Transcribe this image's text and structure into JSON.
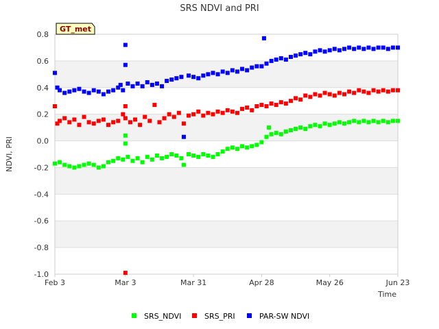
{
  "chart_data": {
    "type": "scatter",
    "title": "SRS NDVI and PRI",
    "xlabel": "Time",
    "ylabel": "NDVI, PRI",
    "badge": "GT_met",
    "ylim": [
      -1.0,
      0.8
    ],
    "yticks": [
      "0.8",
      "0.6",
      "0.4",
      "0.2",
      "0.0",
      "-0.2",
      "-0.4",
      "-0.6",
      "-0.8",
      "-1.0"
    ],
    "ytick_values": [
      0.8,
      0.6,
      0.4,
      0.2,
      0.0,
      -0.2,
      -0.4,
      -0.6,
      -0.8,
      -1.0
    ],
    "xlim": [
      "2024-02-03",
      "2024-06-23"
    ],
    "xticks": [
      "Feb 3",
      "Mar 3",
      "Mar 31",
      "Apr 28",
      "May 26",
      "Jun 23"
    ],
    "xtick_dates": [
      "2024-02-03",
      "2024-03-03",
      "2024-03-31",
      "2024-04-28",
      "2024-05-26",
      "2024-06-23"
    ],
    "grid": true,
    "legend_position": "bottom",
    "series": [
      {
        "name": "SRS_NDVI",
        "color": "#00ff00",
        "points": [
          [
            "2024-02-03",
            -0.17
          ],
          [
            "2024-02-05",
            -0.16
          ],
          [
            "2024-02-07",
            -0.18
          ],
          [
            "2024-02-09",
            -0.19
          ],
          [
            "2024-02-11",
            -0.2
          ],
          [
            "2024-02-13",
            -0.19
          ],
          [
            "2024-02-15",
            -0.18
          ],
          [
            "2024-02-17",
            -0.17
          ],
          [
            "2024-02-19",
            -0.18
          ],
          [
            "2024-02-21",
            -0.2
          ],
          [
            "2024-02-23",
            -0.19
          ],
          [
            "2024-02-25",
            -0.16
          ],
          [
            "2024-02-27",
            -0.15
          ],
          [
            "2024-02-29",
            -0.13
          ],
          [
            "2024-03-02",
            -0.14
          ],
          [
            "2024-03-03",
            -0.02
          ],
          [
            "2024-03-03",
            0.04
          ],
          [
            "2024-03-04",
            -0.12
          ],
          [
            "2024-03-06",
            -0.15
          ],
          [
            "2024-03-08",
            -0.13
          ],
          [
            "2024-03-10",
            -0.16
          ],
          [
            "2024-03-12",
            -0.12
          ],
          [
            "2024-03-14",
            -0.14
          ],
          [
            "2024-03-16",
            -0.11
          ],
          [
            "2024-03-18",
            -0.13
          ],
          [
            "2024-03-20",
            -0.12
          ],
          [
            "2024-03-22",
            -0.1
          ],
          [
            "2024-03-24",
            -0.11
          ],
          [
            "2024-03-26",
            -0.13
          ],
          [
            "2024-03-27",
            -0.18
          ],
          [
            "2024-03-29",
            -0.1
          ],
          [
            "2024-03-31",
            -0.11
          ],
          [
            "2024-04-02",
            -0.12
          ],
          [
            "2024-04-04",
            -0.1
          ],
          [
            "2024-04-06",
            -0.11
          ],
          [
            "2024-04-08",
            -0.12
          ],
          [
            "2024-04-10",
            -0.1
          ],
          [
            "2024-04-12",
            -0.08
          ],
          [
            "2024-04-14",
            -0.06
          ],
          [
            "2024-04-16",
            -0.05
          ],
          [
            "2024-04-18",
            -0.06
          ],
          [
            "2024-04-20",
            -0.04
          ],
          [
            "2024-04-22",
            -0.05
          ],
          [
            "2024-04-24",
            -0.04
          ],
          [
            "2024-04-26",
            -0.03
          ],
          [
            "2024-04-28",
            -0.01
          ],
          [
            "2024-04-30",
            0.03
          ],
          [
            "2024-05-01",
            0.1
          ],
          [
            "2024-05-02",
            0.05
          ],
          [
            "2024-05-04",
            0.06
          ],
          [
            "2024-05-06",
            0.05
          ],
          [
            "2024-05-08",
            0.07
          ],
          [
            "2024-05-10",
            0.08
          ],
          [
            "2024-05-12",
            0.09
          ],
          [
            "2024-05-14",
            0.1
          ],
          [
            "2024-05-16",
            0.09
          ],
          [
            "2024-05-18",
            0.11
          ],
          [
            "2024-05-20",
            0.12
          ],
          [
            "2024-05-22",
            0.11
          ],
          [
            "2024-05-24",
            0.13
          ],
          [
            "2024-05-26",
            0.12
          ],
          [
            "2024-05-28",
            0.13
          ],
          [
            "2024-05-30",
            0.14
          ],
          [
            "2024-06-01",
            0.13
          ],
          [
            "2024-06-03",
            0.14
          ],
          [
            "2024-06-05",
            0.15
          ],
          [
            "2024-06-07",
            0.14
          ],
          [
            "2024-06-09",
            0.15
          ],
          [
            "2024-06-11",
            0.14
          ],
          [
            "2024-06-13",
            0.15
          ],
          [
            "2024-06-15",
            0.14
          ],
          [
            "2024-06-17",
            0.15
          ],
          [
            "2024-06-19",
            0.14
          ],
          [
            "2024-06-21",
            0.15
          ],
          [
            "2024-06-23",
            0.15
          ]
        ]
      },
      {
        "name": "SRS_PRI",
        "color": "#ff0000",
        "points": [
          [
            "2024-02-03",
            0.26
          ],
          [
            "2024-02-04",
            0.13
          ],
          [
            "2024-02-05",
            0.15
          ],
          [
            "2024-02-07",
            0.17
          ],
          [
            "2024-02-09",
            0.14
          ],
          [
            "2024-02-11",
            0.16
          ],
          [
            "2024-02-13",
            0.12
          ],
          [
            "2024-02-15",
            0.18
          ],
          [
            "2024-02-17",
            0.14
          ],
          [
            "2024-02-19",
            0.13
          ],
          [
            "2024-02-21",
            0.15
          ],
          [
            "2024-02-23",
            0.16
          ],
          [
            "2024-02-25",
            0.12
          ],
          [
            "2024-02-27",
            0.14
          ],
          [
            "2024-02-29",
            0.15
          ],
          [
            "2024-03-02",
            0.2
          ],
          [
            "2024-03-03",
            0.17
          ],
          [
            "2024-03-03",
            0.26
          ],
          [
            "2024-03-03",
            -0.99
          ],
          [
            "2024-03-05",
            0.14
          ],
          [
            "2024-03-07",
            0.16
          ],
          [
            "2024-03-09",
            0.12
          ],
          [
            "2024-03-11",
            0.18
          ],
          [
            "2024-03-13",
            0.15
          ],
          [
            "2024-03-15",
            0.27
          ],
          [
            "2024-03-17",
            0.14
          ],
          [
            "2024-03-19",
            0.17
          ],
          [
            "2024-03-21",
            0.2
          ],
          [
            "2024-03-23",
            0.18
          ],
          [
            "2024-03-25",
            0.21
          ],
          [
            "2024-03-27",
            0.13
          ],
          [
            "2024-03-29",
            0.19
          ],
          [
            "2024-03-31",
            0.2
          ],
          [
            "2024-04-02",
            0.22
          ],
          [
            "2024-04-04",
            0.19
          ],
          [
            "2024-04-06",
            0.21
          ],
          [
            "2024-04-08",
            0.2
          ],
          [
            "2024-04-10",
            0.22
          ],
          [
            "2024-04-12",
            0.21
          ],
          [
            "2024-04-14",
            0.23
          ],
          [
            "2024-04-16",
            0.22
          ],
          [
            "2024-04-18",
            0.21
          ],
          [
            "2024-04-20",
            0.24
          ],
          [
            "2024-04-22",
            0.25
          ],
          [
            "2024-04-24",
            0.23
          ],
          [
            "2024-04-26",
            0.26
          ],
          [
            "2024-04-28",
            0.27
          ],
          [
            "2024-04-30",
            0.26
          ],
          [
            "2024-05-02",
            0.28
          ],
          [
            "2024-05-04",
            0.27
          ],
          [
            "2024-05-06",
            0.29
          ],
          [
            "2024-05-08",
            0.28
          ],
          [
            "2024-05-10",
            0.3
          ],
          [
            "2024-05-12",
            0.32
          ],
          [
            "2024-05-14",
            0.31
          ],
          [
            "2024-05-16",
            0.34
          ],
          [
            "2024-05-18",
            0.33
          ],
          [
            "2024-05-20",
            0.35
          ],
          [
            "2024-05-22",
            0.34
          ],
          [
            "2024-05-24",
            0.36
          ],
          [
            "2024-05-26",
            0.35
          ],
          [
            "2024-05-28",
            0.34
          ],
          [
            "2024-05-30",
            0.36
          ],
          [
            "2024-06-01",
            0.35
          ],
          [
            "2024-06-03",
            0.37
          ],
          [
            "2024-06-05",
            0.36
          ],
          [
            "2024-06-07",
            0.38
          ],
          [
            "2024-06-09",
            0.37
          ],
          [
            "2024-06-11",
            0.36
          ],
          [
            "2024-06-13",
            0.38
          ],
          [
            "2024-06-15",
            0.37
          ],
          [
            "2024-06-17",
            0.38
          ],
          [
            "2024-06-19",
            0.37
          ],
          [
            "2024-06-21",
            0.38
          ],
          [
            "2024-06-23",
            0.38
          ]
        ]
      },
      {
        "name": "PAR-SW NDVI",
        "color": "#0000ff",
        "points": [
          [
            "2024-02-03",
            0.51
          ],
          [
            "2024-02-04",
            0.4
          ],
          [
            "2024-02-05",
            0.38
          ],
          [
            "2024-02-07",
            0.36
          ],
          [
            "2024-02-09",
            0.37
          ],
          [
            "2024-02-11",
            0.38
          ],
          [
            "2024-02-13",
            0.39
          ],
          [
            "2024-02-15",
            0.37
          ],
          [
            "2024-02-17",
            0.36
          ],
          [
            "2024-02-19",
            0.38
          ],
          [
            "2024-02-21",
            0.37
          ],
          [
            "2024-02-23",
            0.35
          ],
          [
            "2024-02-25",
            0.37
          ],
          [
            "2024-02-27",
            0.38
          ],
          [
            "2024-02-29",
            0.4
          ],
          [
            "2024-03-01",
            0.42
          ],
          [
            "2024-03-02",
            0.38
          ],
          [
            "2024-03-03",
            0.72
          ],
          [
            "2024-03-03",
            0.57
          ],
          [
            "2024-03-04",
            0.43
          ],
          [
            "2024-03-06",
            0.41
          ],
          [
            "2024-03-08",
            0.43
          ],
          [
            "2024-03-10",
            0.41
          ],
          [
            "2024-03-12",
            0.44
          ],
          [
            "2024-03-14",
            0.42
          ],
          [
            "2024-03-16",
            0.43
          ],
          [
            "2024-03-18",
            0.41
          ],
          [
            "2024-03-20",
            0.45
          ],
          [
            "2024-03-22",
            0.46
          ],
          [
            "2024-03-24",
            0.47
          ],
          [
            "2024-03-26",
            0.48
          ],
          [
            "2024-03-27",
            0.03
          ],
          [
            "2024-03-29",
            0.49
          ],
          [
            "2024-03-31",
            0.48
          ],
          [
            "2024-04-02",
            0.47
          ],
          [
            "2024-04-04",
            0.49
          ],
          [
            "2024-04-06",
            0.5
          ],
          [
            "2024-04-08",
            0.51
          ],
          [
            "2024-04-10",
            0.5
          ],
          [
            "2024-04-12",
            0.52
          ],
          [
            "2024-04-14",
            0.51
          ],
          [
            "2024-04-16",
            0.53
          ],
          [
            "2024-04-18",
            0.52
          ],
          [
            "2024-04-20",
            0.54
          ],
          [
            "2024-04-22",
            0.53
          ],
          [
            "2024-04-24",
            0.55
          ],
          [
            "2024-04-26",
            0.56
          ],
          [
            "2024-04-28",
            0.56
          ],
          [
            "2024-04-29",
            0.77
          ],
          [
            "2024-04-30",
            0.58
          ],
          [
            "2024-05-02",
            0.6
          ],
          [
            "2024-05-04",
            0.61
          ],
          [
            "2024-05-06",
            0.62
          ],
          [
            "2024-05-08",
            0.61
          ],
          [
            "2024-05-10",
            0.63
          ],
          [
            "2024-05-12",
            0.64
          ],
          [
            "2024-05-14",
            0.65
          ],
          [
            "2024-05-16",
            0.66
          ],
          [
            "2024-05-18",
            0.65
          ],
          [
            "2024-05-20",
            0.67
          ],
          [
            "2024-05-22",
            0.68
          ],
          [
            "2024-05-24",
            0.67
          ],
          [
            "2024-05-26",
            0.68
          ],
          [
            "2024-05-28",
            0.69
          ],
          [
            "2024-05-30",
            0.68
          ],
          [
            "2024-06-01",
            0.69
          ],
          [
            "2024-06-03",
            0.7
          ],
          [
            "2024-06-05",
            0.69
          ],
          [
            "2024-06-07",
            0.7
          ],
          [
            "2024-06-09",
            0.69
          ],
          [
            "2024-06-11",
            0.7
          ],
          [
            "2024-06-13",
            0.69
          ],
          [
            "2024-06-15",
            0.7
          ],
          [
            "2024-06-17",
            0.7
          ],
          [
            "2024-06-19",
            0.69
          ],
          [
            "2024-06-21",
            0.7
          ],
          [
            "2024-06-23",
            0.7
          ]
        ]
      }
    ]
  }
}
